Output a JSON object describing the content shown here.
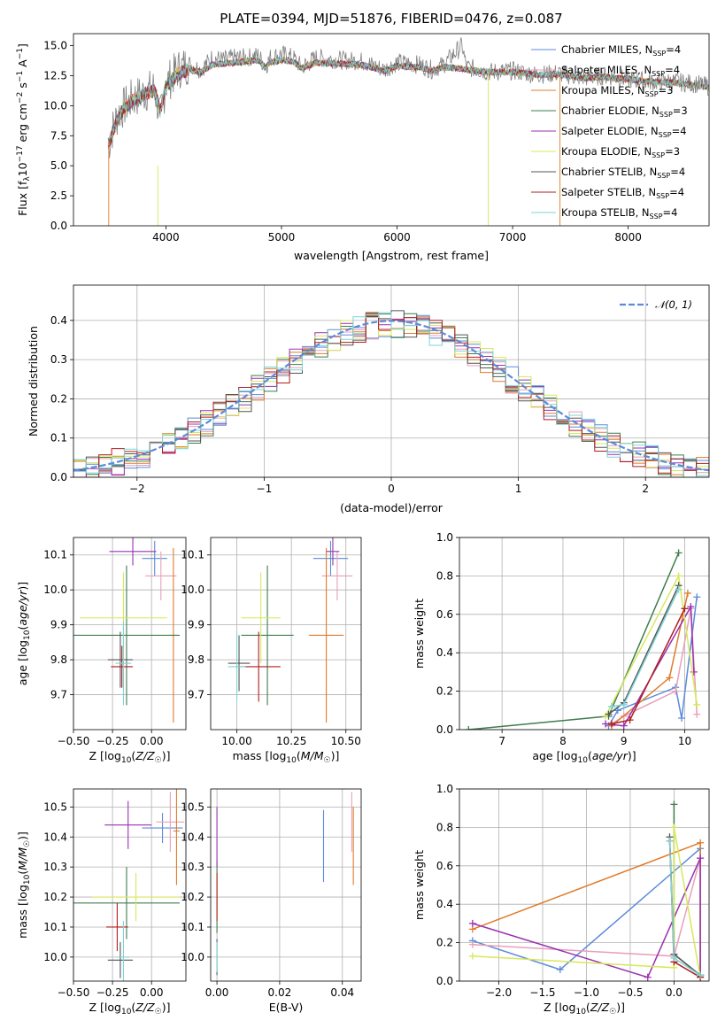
{
  "figure": {
    "title": "PLATE=0394, MJD=51876, FIBERID=0476, z=0.087"
  },
  "models": [
    {
      "name": "Chabrier MILES, N_SSP=4",
      "imf": "Chabrier",
      "lib": "MILES",
      "nssp": "4",
      "color": "#5b8bd9"
    },
    {
      "name": "Salpeter MILES, N_SSP=4",
      "imf": "Salpeter",
      "lib": "MILES",
      "nssp": "4",
      "color": "#e8a0b8"
    },
    {
      "name": "Kroupa MILES, N_SSP=3",
      "imf": "Kroupa",
      "lib": "MILES",
      "nssp": "3",
      "color": "#e07b2a"
    },
    {
      "name": "Chabrier ELODIE, N_SSP=3",
      "imf": "Chabrier",
      "lib": "ELODIE",
      "nssp": "3",
      "color": "#3f7d4e"
    },
    {
      "name": "Salpeter ELODIE, N_SSP=4",
      "imf": "Salpeter",
      "lib": "ELODIE",
      "nssp": "4",
      "color": "#9a32b0"
    },
    {
      "name": "Kroupa ELODIE, N_SSP=3",
      "imf": "Kroupa",
      "lib": "ELODIE",
      "nssp": "3",
      "color": "#d7e85a"
    },
    {
      "name": "Chabrier STELIB, N_SSP=4",
      "imf": "Chabrier",
      "lib": "STELIB",
      "nssp": "4",
      "color": "#555555"
    },
    {
      "name": "Salpeter STELIB, N_SSP=4",
      "imf": "Salpeter",
      "lib": "STELIB",
      "nssp": "4",
      "color": "#b01e1e"
    },
    {
      "name": "Kroupa STELIB, N_SSP=4",
      "imf": "Kroupa",
      "lib": "STELIB",
      "nssp": "4",
      "color": "#7ed3d6"
    }
  ],
  "chart_data": [
    {
      "id": "spectrum",
      "type": "line",
      "title": "PLATE=0394, MJD=51876, FIBERID=0476, z=0.087",
      "xlabel": "wavelength [Angstrom, rest frame]",
      "ylabel": "Flux [f_λ 10^-17 erg cm^-2 s^-1 A^-1]",
      "xlim": [
        3200,
        8700
      ],
      "ylim": [
        0,
        16
      ],
      "xticks": [
        4000,
        5000,
        6000,
        7000,
        8000
      ],
      "yticks": [
        0.0,
        2.5,
        5.0,
        7.5,
        10.0,
        12.5,
        15.0
      ],
      "data_trace": {
        "color": "#808080",
        "x": [
          3500,
          3550,
          3600,
          3700,
          3800,
          3900,
          3950,
          4000,
          4100,
          4200,
          4300,
          4400,
          4500,
          4600,
          4700,
          4800,
          4861,
          4900,
          5000,
          5100,
          5175,
          5300,
          5500,
          5700,
          5890,
          6000,
          6200,
          6300,
          6400,
          6563,
          6600,
          6700,
          6800,
          7000,
          7200,
          7400,
          7600,
          7800,
          8000,
          8200,
          8400,
          8600,
          8700
        ],
        "y": [
          6.5,
          8.5,
          9.5,
          10.5,
          11.0,
          11.5,
          9.0,
          11.8,
          13.0,
          13.5,
          13.0,
          14.0,
          13.8,
          14.0,
          14.0,
          14.2,
          13.2,
          14.0,
          14.3,
          14.0,
          13.2,
          14.0,
          13.8,
          13.7,
          13.0,
          13.6,
          13.4,
          13.0,
          13.4,
          15.0,
          13.2,
          13.0,
          12.8,
          12.9,
          12.6,
          12.7,
          12.3,
          12.5,
          12.2,
          12.0,
          12.0,
          11.8,
          11.6
        ]
      },
      "model_trace": {
        "x": [
          3500,
          3550,
          3600,
          3700,
          3800,
          3900,
          3950,
          4000,
          4100,
          4200,
          4300,
          4400,
          4500,
          4600,
          4700,
          4800,
          4861,
          4900,
          5000,
          5100,
          5175,
          5300,
          5500,
          5700,
          5890,
          6000,
          6200,
          6300,
          6400,
          6563,
          6600,
          6700,
          6800,
          7000,
          7200,
          7400,
          7600,
          7800,
          8000,
          8200,
          8400,
          8600,
          8700
        ],
        "y": [
          6.8,
          8.0,
          9.3,
          10.3,
          10.9,
          11.3,
          9.5,
          11.6,
          12.6,
          13.0,
          12.8,
          13.4,
          13.5,
          13.6,
          13.7,
          13.8,
          13.2,
          13.6,
          13.8,
          13.7,
          13.1,
          13.6,
          13.5,
          13.4,
          12.9,
          13.3,
          13.2,
          12.9,
          13.2,
          13.1,
          13.0,
          12.9,
          12.8,
          12.8,
          12.6,
          12.6,
          12.3,
          12.4,
          12.2,
          12.0,
          11.9,
          11.7,
          11.5
        ]
      },
      "legend_position": "top-right"
    },
    {
      "id": "residuals",
      "type": "histogram",
      "xlabel": "(data-model)/error",
      "ylabel": "Normed distribution",
      "xlim": [
        -2.5,
        2.5
      ],
      "ylim": [
        0,
        0.49
      ],
      "xticks": [
        -2,
        -1,
        0,
        1,
        2
      ],
      "yticks": [
        0.0,
        0.1,
        0.2,
        0.3,
        0.4
      ],
      "grid": true,
      "reference_curve": {
        "name": "𝒩(0, 1)",
        "mean": 0,
        "sigma": 1,
        "color": "#5b8bd9",
        "style": "dashed"
      },
      "bin_edges": [
        -2.5,
        -2.4,
        -2.3,
        -2.2,
        -2.1,
        -2.0,
        -1.9,
        -1.8,
        -1.7,
        -1.6,
        -1.5,
        -1.4,
        -1.3,
        -1.2,
        -1.1,
        -1.0,
        -0.9,
        -0.8,
        -0.7,
        -0.6,
        -0.5,
        -0.4,
        -0.3,
        -0.2,
        -0.1,
        0.0,
        0.1,
        0.2,
        0.3,
        0.4,
        0.5,
        0.6,
        0.7,
        0.8,
        0.9,
        1.0,
        1.1,
        1.2,
        1.3,
        1.4,
        1.5,
        1.6,
        1.7,
        1.8,
        1.9,
        2.0,
        2.1,
        2.2,
        2.3,
        2.4,
        2.5
      ],
      "legend_position": "top-right"
    },
    {
      "id": "age-vs-Z",
      "type": "errorbar",
      "xlabel": "Z [log10(Z/Z☉)]",
      "ylabel": "age [log10(age/yr)]",
      "xlim": [
        -0.5,
        0.22
      ],
      "ylim": [
        9.6,
        10.15
      ],
      "xticks": [
        -0.5,
        -0.25,
        0.0
      ],
      "yticks": [
        9.7,
        9.8,
        9.9,
        10.0,
        10.1
      ],
      "points": [
        {
          "model": 0,
          "x": 0.02,
          "xerr": 0.08,
          "y": 10.09,
          "yerr": 0.05
        },
        {
          "model": 1,
          "x": 0.06,
          "xerr": 0.1,
          "y": 10.04,
          "yerr": 0.07
        },
        {
          "model": 2,
          "x": 0.14,
          "xerr": 0.02,
          "y": 9.87,
          "yerr": 0.25
        },
        {
          "model": 3,
          "x": -0.16,
          "xerr": 0.34,
          "y": 9.87,
          "yerr": 0.2
        },
        {
          "model": 4,
          "x": -0.12,
          "xerr": 0.15,
          "y": 10.11,
          "yerr": 0.04
        },
        {
          "model": 5,
          "x": -0.18,
          "xerr": 0.28,
          "y": 9.92,
          "yerr": 0.13
        },
        {
          "model": 6,
          "x": -0.2,
          "xerr": 0.08,
          "y": 9.8,
          "yerr": 0.08
        },
        {
          "model": 7,
          "x": -0.19,
          "xerr": 0.07,
          "y": 9.78,
          "yerr": 0.06
        },
        {
          "model": 8,
          "x": -0.18,
          "xerr": 0.05,
          "y": 9.79,
          "yerr": 0.12
        }
      ]
    },
    {
      "id": "age-vs-mass",
      "type": "errorbar",
      "xlabel": "mass [log10(M/M☉)]",
      "ylabel": "",
      "xlim": [
        9.88,
        10.57
      ],
      "ylim": [
        9.6,
        10.15
      ],
      "xticks": [
        10.0,
        10.25,
        10.5
      ],
      "yticks": [
        9.7,
        9.8,
        9.9,
        10.0,
        10.1
      ],
      "points": [
        {
          "model": 0,
          "x": 10.43,
          "xerr": 0.08,
          "y": 10.09,
          "yerr": 0.05
        },
        {
          "model": 1,
          "x": 10.46,
          "xerr": 0.07,
          "y": 10.04,
          "yerr": 0.07
        },
        {
          "model": 2,
          "x": 10.41,
          "xerr": 0.08,
          "y": 9.87,
          "yerr": 0.25
        },
        {
          "model": 3,
          "x": 10.14,
          "xerr": 0.12,
          "y": 9.87,
          "yerr": 0.2
        },
        {
          "model": 4,
          "x": 10.44,
          "xerr": 0.03,
          "y": 10.11,
          "yerr": 0.04
        },
        {
          "model": 5,
          "x": 10.11,
          "xerr": 0.09,
          "y": 9.92,
          "yerr": 0.13
        },
        {
          "model": 6,
          "x": 10.01,
          "xerr": 0.05,
          "y": 9.79,
          "yerr": 0.08
        },
        {
          "model": 7,
          "x": 10.1,
          "xerr": 0.1,
          "y": 9.78,
          "yerr": 0.1
        },
        {
          "model": 8,
          "x": 10.0,
          "xerr": 0.04,
          "y": 9.78,
          "yerr": 0.1
        }
      ]
    },
    {
      "id": "massweight-vs-age",
      "type": "line",
      "xlabel": "age [log10(age/yr)]",
      "ylabel": "mass weight",
      "xlim": [
        6.3,
        10.4
      ],
      "ylim": [
        0,
        1.0
      ],
      "xticks": [
        7,
        8,
        9,
        10
      ],
      "yticks": [
        0.0,
        0.2,
        0.4,
        0.6,
        0.8,
        1.0
      ],
      "grid": true,
      "series": [
        {
          "model": 0,
          "x": [
            8.75,
            8.9,
            9.85,
            9.95,
            10.2
          ],
          "y": [
            0.02,
            0.1,
            0.22,
            0.06,
            0.69
          ]
        },
        {
          "model": 1,
          "x": [
            8.8,
            9.0,
            9.85,
            10.1,
            10.2
          ],
          "y": [
            0.03,
            0.07,
            0.2,
            0.63,
            0.08
          ]
        },
        {
          "model": 2,
          "x": [
            8.8,
            9.75,
            10.05
          ],
          "y": [
            0.02,
            0.27,
            0.71
          ]
        },
        {
          "model": 3,
          "x": [
            6.45,
            8.75,
            9.9
          ],
          "y": [
            0.0,
            0.07,
            0.92
          ]
        },
        {
          "model": 4,
          "x": [
            8.7,
            9.0,
            10.1,
            10.15
          ],
          "y": [
            0.03,
            0.02,
            0.64,
            0.3
          ]
        },
        {
          "model": 5,
          "x": [
            8.7,
            9.9,
            10.2
          ],
          "y": [
            0.07,
            0.8,
            0.13
          ]
        },
        {
          "model": 6,
          "x": [
            8.75,
            9.0,
            9.9
          ],
          "y": [
            0.08,
            0.14,
            0.75
          ]
        },
        {
          "model": 7,
          "x": [
            8.8,
            9.1,
            10.0
          ],
          "y": [
            0.03,
            0.05,
            0.63
          ]
        },
        {
          "model": 8,
          "x": [
            8.8,
            9.0,
            9.9
          ],
          "y": [
            0.12,
            0.13,
            0.73
          ]
        }
      ]
    },
    {
      "id": "mass-vs-Z",
      "type": "errorbar",
      "xlabel": "Z [log10(Z/Z☉)]",
      "ylabel": "mass [log10(M/M☉)]",
      "xlim": [
        -0.5,
        0.22
      ],
      "ylim": [
        9.92,
        10.56
      ],
      "xticks": [
        -0.5,
        -0.25,
        0.0
      ],
      "yticks": [
        10.0,
        10.1,
        10.2,
        10.3,
        10.4,
        10.5
      ],
      "points": [
        {
          "model": 0,
          "x": 0.07,
          "xerr": 0.13,
          "y": 10.43,
          "yerr": 0.05
        },
        {
          "model": 1,
          "x": 0.12,
          "xerr": 0.09,
          "y": 10.45,
          "yerr": 0.1
        },
        {
          "model": 2,
          "x": 0.16,
          "xerr": 0.02,
          "y": 10.42,
          "yerr": 0.18
        },
        {
          "model": 3,
          "x": -0.16,
          "xerr": 0.34,
          "y": 10.18,
          "yerr": 0.12
        },
        {
          "model": 4,
          "x": -0.15,
          "xerr": 0.15,
          "y": 10.44,
          "yerr": 0.08
        },
        {
          "model": 5,
          "x": -0.1,
          "xerr": 0.28,
          "y": 10.2,
          "yerr": 0.08
        },
        {
          "model": 6,
          "x": -0.2,
          "xerr": 0.08,
          "y": 9.99,
          "yerr": 0.06
        },
        {
          "model": 7,
          "x": -0.22,
          "xerr": 0.07,
          "y": 10.1,
          "yerr": 0.08
        },
        {
          "model": 8,
          "x": -0.18,
          "xerr": 0.04,
          "y": 10.0,
          "yerr": 0.12
        }
      ]
    },
    {
      "id": "mass-vs-ebv",
      "type": "errorbar",
      "xlabel": "E(B-V)",
      "ylabel": "",
      "xlim": [
        -0.002,
        0.046
      ],
      "ylim": [
        9.92,
        10.56
      ],
      "xticks": [
        0.0,
        0.02,
        0.04
      ],
      "yticks": [
        10.0,
        10.1,
        10.2,
        10.3,
        10.4,
        10.5
      ],
      "points": [
        {
          "model": 0,
          "x": 0.034,
          "xerr": 0,
          "y": 10.37,
          "yerr": 0.12
        },
        {
          "model": 1,
          "x": 0.043,
          "xerr": 0,
          "y": 10.45,
          "yerr": 0.1
        },
        {
          "model": 2,
          "x": 0.0435,
          "xerr": 0,
          "y": 10.37,
          "yerr": 0.13
        },
        {
          "model": 3,
          "x": 0.0,
          "xerr": 0,
          "y": 10.2,
          "yerr": 0.12
        },
        {
          "model": 4,
          "x": 0.0,
          "xerr": 0,
          "y": 10.4,
          "yerr": 0.1
        },
        {
          "model": 5,
          "x": 0.0,
          "xerr": 0,
          "y": 10.2,
          "yerr": 0.08
        },
        {
          "model": 6,
          "x": 0.0,
          "xerr": 0,
          "y": 10.0,
          "yerr": 0.06
        },
        {
          "model": 7,
          "x": 0.0,
          "xerr": 0,
          "y": 10.2,
          "yerr": 0.08
        },
        {
          "model": 8,
          "x": 0.0,
          "xerr": 0,
          "y": 10.0,
          "yerr": 0.05
        }
      ]
    },
    {
      "id": "massweight-vs-Z",
      "type": "line",
      "xlabel": "Z [log10(Z/Z☉)]",
      "ylabel": "mass weight",
      "xlim": [
        -2.45,
        0.4
      ],
      "ylim": [
        0,
        1.0
      ],
      "xticks": [
        -2.0,
        -1.5,
        -1.0,
        -0.5,
        0.0
      ],
      "yticks": [
        0.0,
        0.2,
        0.4,
        0.6,
        0.8,
        1.0
      ],
      "grid": true,
      "series": [
        {
          "model": 0,
          "x": [
            -2.3,
            -1.3,
            0.3,
            0.3
          ],
          "y": [
            0.21,
            0.06,
            0.69,
            0.03
          ]
        },
        {
          "model": 1,
          "x": [
            -2.3,
            -0.0,
            0.3,
            0.3
          ],
          "y": [
            0.19,
            0.13,
            0.64,
            0.02
          ]
        },
        {
          "model": 2,
          "x": [
            -2.3,
            0.3,
            0.3
          ],
          "y": [
            0.27,
            0.72,
            0.02
          ]
        },
        {
          "model": 3,
          "x": [
            -0.0,
            -0.0,
            0.3
          ],
          "y": [
            0.92,
            0.14,
            0.03
          ]
        },
        {
          "model": 4,
          "x": [
            -2.3,
            -0.3,
            0.3,
            0.3
          ],
          "y": [
            0.3,
            0.02,
            0.64,
            0.03
          ]
        },
        {
          "model": 5,
          "x": [
            -2.3,
            -0.0,
            -0.0,
            0.3
          ],
          "y": [
            0.13,
            0.07,
            0.8,
            0.02
          ]
        },
        {
          "model": 6,
          "x": [
            -0.05,
            -0.0,
            0.3
          ],
          "y": [
            0.75,
            0.14,
            0.03
          ]
        },
        {
          "model": 7,
          "x": [
            -0.05,
            -0.0,
            0.3
          ],
          "y": [
            0.73,
            0.1,
            0.02
          ]
        },
        {
          "model": 8,
          "x": [
            -0.05,
            -0.0,
            0.3
          ],
          "y": [
            0.73,
            0.12,
            0.03
          ]
        }
      ]
    }
  ]
}
